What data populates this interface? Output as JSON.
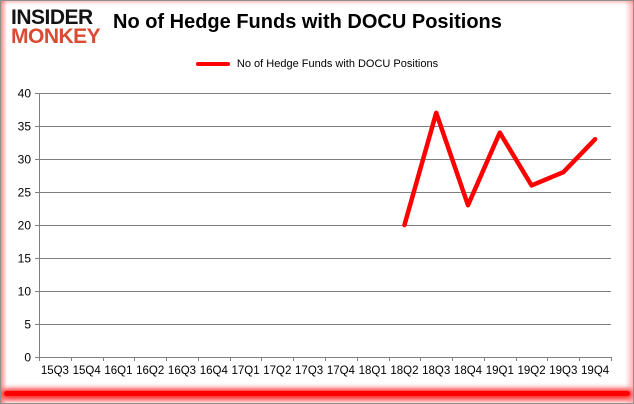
{
  "logo": {
    "line1": "INSIDER",
    "line2": "MONKEY",
    "color1": "#141414",
    "color2": "#d94b32"
  },
  "header": {
    "title": "No of Hedge Funds with DOCU Positions"
  },
  "legend": {
    "label": "No of Hedge Funds with DOCU Positions",
    "swatch_color": "#ff0000"
  },
  "frame": {
    "border_color": "#8f8f8f",
    "glow_color": "#ff0000"
  },
  "chart_data": {
    "type": "line",
    "title": "No of Hedge Funds with DOCU Positions",
    "categories": [
      "15Q3",
      "15Q4",
      "16Q1",
      "16Q2",
      "16Q3",
      "16Q4",
      "17Q1",
      "17Q2",
      "17Q3",
      "17Q4",
      "18Q1",
      "18Q2",
      "18Q3",
      "18Q4",
      "19Q1",
      "19Q2",
      "19Q3",
      "19Q4"
    ],
    "series": [
      {
        "name": "No of Hedge Funds with DOCU Positions",
        "color": "#ff0000",
        "values": [
          null,
          null,
          null,
          null,
          null,
          null,
          null,
          null,
          null,
          null,
          null,
          20,
          37,
          23,
          34,
          26,
          28,
          33
        ]
      }
    ],
    "xlabel": "",
    "ylabel": "",
    "ylim": [
      0,
      40
    ],
    "yticks": [
      0,
      5,
      10,
      15,
      20,
      25,
      30,
      35,
      40
    ],
    "grid": true,
    "gridline_color": "#7f7f7f",
    "legend_position": "top-center"
  }
}
